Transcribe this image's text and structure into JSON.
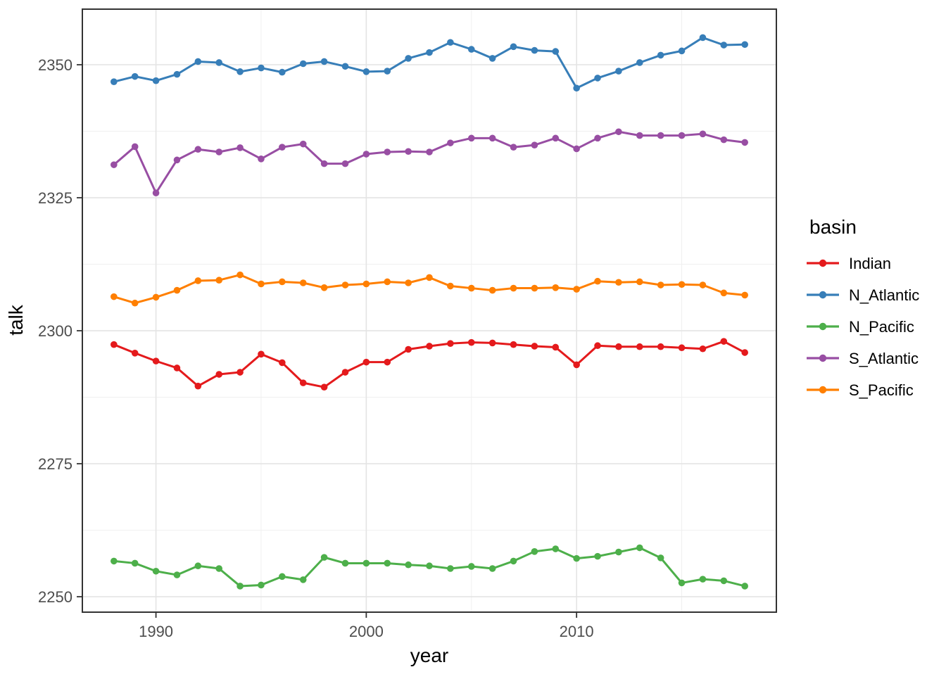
{
  "figure": {
    "background": "#ffffff",
    "x_axis_title": "year",
    "y_axis_title": "talk"
  },
  "chart_data": {
    "type": "line",
    "title": "",
    "xlabel": "year",
    "ylabel": "talk",
    "x": [
      1988,
      1989,
      1990,
      1991,
      1992,
      1993,
      1994,
      1995,
      1996,
      1997,
      1998,
      1999,
      2000,
      2001,
      2002,
      2003,
      2004,
      2005,
      2006,
      2007,
      2008,
      2009,
      2010,
      2011,
      2012,
      2013,
      2014,
      2015,
      2016,
      2017,
      2018
    ],
    "series": [
      {
        "name": "Indian",
        "color": "#E41A1C",
        "values": [
          2297.4,
          2295.8,
          2294.3,
          2293.0,
          2289.6,
          2291.8,
          2292.2,
          2295.6,
          2294.0,
          2290.2,
          2289.4,
          2292.2,
          2294.1,
          2294.1,
          2296.5,
          2297.1,
          2297.6,
          2297.8,
          2297.7,
          2297.4,
          2297.1,
          2296.9,
          2293.6,
          2297.2,
          2297.0,
          2297.0,
          2297.0,
          2296.8,
          2296.6,
          2298.0,
          2295.9
        ]
      },
      {
        "name": "N_Atlantic",
        "color": "#377EB8",
        "values": [
          2346.8,
          2347.8,
          2347.0,
          2348.2,
          2350.6,
          2350.4,
          2348.7,
          2349.4,
          2348.6,
          2350.2,
          2350.6,
          2349.7,
          2348.7,
          2348.8,
          2351.2,
          2352.3,
          2354.2,
          2352.9,
          2351.2,
          2353.4,
          2352.7,
          2352.5,
          2345.6,
          2347.5,
          2348.8,
          2350.4,
          2351.8,
          2352.6,
          2355.1,
          2353.7,
          2353.8
        ]
      },
      {
        "name": "N_Pacific",
        "color": "#4DAF4A",
        "values": [
          2256.7,
          2256.3,
          2254.8,
          2254.1,
          2255.8,
          2255.3,
          2252.0,
          2252.2,
          2253.8,
          2253.2,
          2257.4,
          2256.3,
          2256.3,
          2256.3,
          2256.0,
          2255.8,
          2255.3,
          2255.7,
          2255.3,
          2256.7,
          2258.5,
          2259.0,
          2257.2,
          2257.6,
          2258.4,
          2259.2,
          2257.3,
          2252.6,
          2253.3,
          2253.0,
          2252.0
        ]
      },
      {
        "name": "S_Atlantic",
        "color": "#984EA3",
        "values": [
          2331.2,
          2334.6,
          2325.9,
          2332.1,
          2334.1,
          2333.6,
          2334.4,
          2332.3,
          2334.5,
          2335.1,
          2331.4,
          2331.4,
          2333.2,
          2333.6,
          2333.7,
          2333.6,
          2335.3,
          2336.2,
          2336.2,
          2334.5,
          2334.9,
          2336.2,
          2334.2,
          2336.2,
          2337.4,
          2336.7,
          2336.7,
          2336.7,
          2337.0,
          2335.9,
          2335.4
        ]
      },
      {
        "name": "S_Pacific",
        "color": "#FF7F00",
        "values": [
          2306.4,
          2305.2,
          2306.3,
          2307.6,
          2309.4,
          2309.5,
          2310.5,
          2308.8,
          2309.2,
          2309.0,
          2308.1,
          2308.6,
          2308.8,
          2309.2,
          2309.0,
          2310.0,
          2308.4,
          2308.0,
          2307.6,
          2308.0,
          2308.0,
          2308.1,
          2307.8,
          2309.3,
          2309.1,
          2309.2,
          2308.6,
          2308.7,
          2308.6,
          2307.1,
          2306.7
        ]
      }
    ],
    "legend": {
      "title": "basin",
      "position": "right",
      "entries": [
        "Indian",
        "N_Atlantic",
        "N_Pacific",
        "S_Atlantic",
        "S_Pacific"
      ]
    },
    "x_ticks": [
      1990,
      2000,
      2010
    ],
    "y_ticks": [
      2250,
      2275,
      2300,
      2325,
      2350
    ],
    "x_minor_ticks": [
      1995,
      2005,
      2015
    ],
    "y_minor_ticks": [
      2262.5,
      2287.5,
      2312.5,
      2337.5
    ],
    "xlim": [
      1986.5,
      2019.5
    ],
    "ylim": [
      2247.1,
      2360.45
    ],
    "grid": true,
    "marker": "point",
    "theme": {
      "panel_background": "#ffffff",
      "panel_border": "#333333",
      "grid_major": "#e4e4e4",
      "grid_minor": "#f0f0f0",
      "tick_color": "#333333",
      "tick_label_color": "#4d4d4d"
    }
  }
}
